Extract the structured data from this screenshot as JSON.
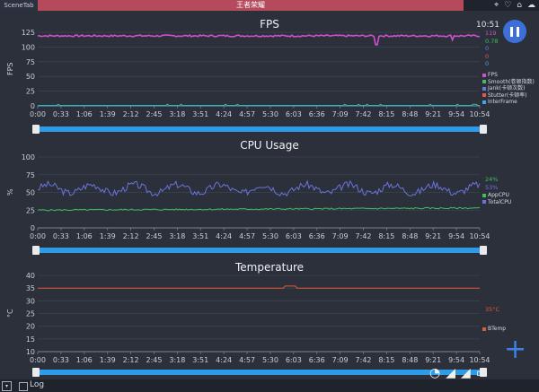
{
  "tabs": {
    "left": "SceneTab",
    "title": "王者荣耀"
  },
  "status": {
    "time": "10:51"
  },
  "x_ticks": [
    "0:00",
    "0:33",
    "1:06",
    "1:39",
    "2:12",
    "2:45",
    "3:18",
    "3:51",
    "4:24",
    "4:57",
    "5:30",
    "6:03",
    "6:36",
    "7:09",
    "7:42",
    "8:15",
    "8:48",
    "9:21",
    "9:54",
    "10:54"
  ],
  "colors": {
    "fps": "#d04fd0",
    "smooth": "#3fbf5f",
    "jank": "#6b78e0",
    "stutter": "#e05a4f",
    "interframe": "#4aa3e8",
    "appcpu": "#3fbf5f",
    "totalcpu": "#6a74d8",
    "btemp": "#e05a3a",
    "accent": "#3d6fd6"
  },
  "fps_panel": {
    "title": "FPS",
    "ylabel": "FPS",
    "yticks": [
      "125",
      "100",
      "75",
      "50",
      "25",
      "0"
    ],
    "values": [
      {
        "text": "119",
        "color": "#d04fd0"
      },
      {
        "text": "0.78",
        "color": "#3fbf5f"
      },
      {
        "text": "0",
        "color": "#6b78e0"
      },
      {
        "text": "0",
        "color": "#e05a4f"
      },
      {
        "text": "0",
        "color": "#4aa3e8"
      }
    ],
    "legend": [
      {
        "label": "FPS",
        "color": "#d04fd0"
      },
      {
        "label": "Smooth(卷顿指数)",
        "color": "#3fbf5f"
      },
      {
        "label": "Jank(卡顿次数)",
        "color": "#6b78e0"
      },
      {
        "label": "Stutter(卡顿率)",
        "color": "#e05a4f"
      },
      {
        "label": "InterFrame",
        "color": "#4aa3e8"
      }
    ]
  },
  "cpu_panel": {
    "title": "CPU Usage",
    "ylabel": "%",
    "yticks": [
      "100",
      "75",
      "50",
      "25",
      "0"
    ],
    "values": [
      {
        "text": "24%",
        "color": "#3fbf5f"
      },
      {
        "text": "53%",
        "color": "#6a74d8"
      }
    ],
    "legend": [
      {
        "label": "AppCPU",
        "color": "#3fbf5f"
      },
      {
        "label": "TotalCPU",
        "color": "#6a74d8"
      }
    ]
  },
  "temp_panel": {
    "title": "Temperature",
    "ylabel": "°C",
    "yticks": [
      "40",
      "35",
      "30",
      "25",
      "20",
      "15",
      "10"
    ],
    "values": [
      {
        "text": "35°C",
        "color": "#e05a3a"
      }
    ],
    "legend": [
      {
        "label": "BTemp",
        "color": "#e05a3a"
      }
    ]
  },
  "bottom": {
    "log_label": "Log"
  },
  "icons": [
    "location-icon",
    "bulb-icon",
    "home-icon",
    "cloud-icon",
    "wifi-icon",
    "signal-icon",
    "signal-icon",
    "battery-icon",
    "pause-icon",
    "plus-icon",
    "dropdown-icon"
  ]
}
